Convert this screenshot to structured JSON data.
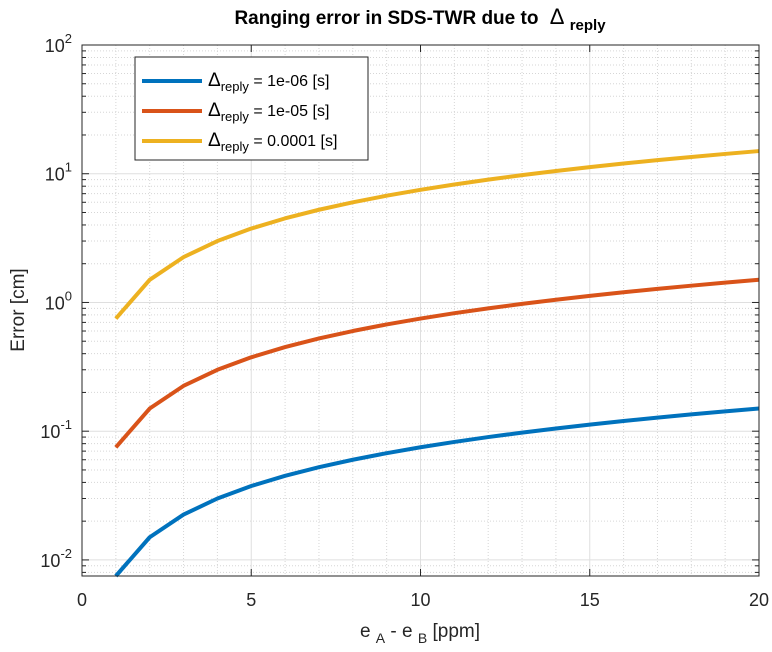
{
  "chart_data": {
    "type": "line",
    "title": "Ranging error in SDS-TWR due to",
    "title_symbol": "Δ",
    "title_subscript": "reply",
    "xlabel_main": "e",
    "xlabel_sub_a": "A",
    "xlabel_mid": " - e",
    "xlabel_sub_b": "B",
    "xlabel_unit": " [ppm]",
    "ylabel": "Error [cm]",
    "xlim": [
      0,
      20
    ],
    "ylim": [
      0.0075,
      100
    ],
    "yscale": "log",
    "grid": true,
    "minor_grid": true,
    "legend_position": "top-left",
    "x_ticks": [
      {
        "value": 0,
        "label": "0"
      },
      {
        "value": 5,
        "label": "5"
      },
      {
        "value": 10,
        "label": "10"
      },
      {
        "value": 15,
        "label": "15"
      },
      {
        "value": 20,
        "label": "20"
      }
    ],
    "y_ticks": [
      {
        "value": 0.01,
        "base": "10",
        "exp": "-2"
      },
      {
        "value": 0.1,
        "base": "10",
        "exp": "-1"
      },
      {
        "value": 1,
        "base": "10",
        "exp": "0"
      },
      {
        "value": 10,
        "base": "10",
        "exp": "1"
      },
      {
        "value": 100,
        "base": "10",
        "exp": "2"
      }
    ],
    "x": [
      1,
      2,
      3,
      4,
      5,
      6,
      7,
      8,
      9,
      10,
      11,
      12,
      13,
      14,
      15,
      16,
      17,
      18,
      19,
      20
    ],
    "series": [
      {
        "symbol": "Δ",
        "sub": "reply",
        "value_text": " = 1e-06 [s]",
        "color": "#0072BD",
        "values": [
          0.0075,
          0.015,
          0.0225,
          0.03,
          0.0375,
          0.045,
          0.0525,
          0.06,
          0.0675,
          0.075,
          0.0825,
          0.09,
          0.0975,
          0.105,
          0.1125,
          0.12,
          0.1275,
          0.135,
          0.1425,
          0.15
        ]
      },
      {
        "symbol": "Δ",
        "sub": "reply",
        "value_text": " = 1e-05 [s]",
        "color": "#D95319",
        "values": [
          0.075,
          0.15,
          0.225,
          0.3,
          0.375,
          0.45,
          0.525,
          0.6,
          0.675,
          0.75,
          0.825,
          0.9,
          0.975,
          1.05,
          1.125,
          1.2,
          1.275,
          1.35,
          1.425,
          1.5
        ]
      },
      {
        "symbol": "Δ",
        "sub": "reply",
        "value_text": " = 0.0001 [s]",
        "color": "#EDB120",
        "values": [
          0.75,
          1.5,
          2.25,
          3.0,
          3.75,
          4.5,
          5.25,
          6.0,
          6.75,
          7.5,
          8.25,
          9.0,
          9.75,
          10.5,
          11.25,
          12.0,
          12.75,
          13.5,
          14.25,
          15.0
        ]
      }
    ]
  }
}
